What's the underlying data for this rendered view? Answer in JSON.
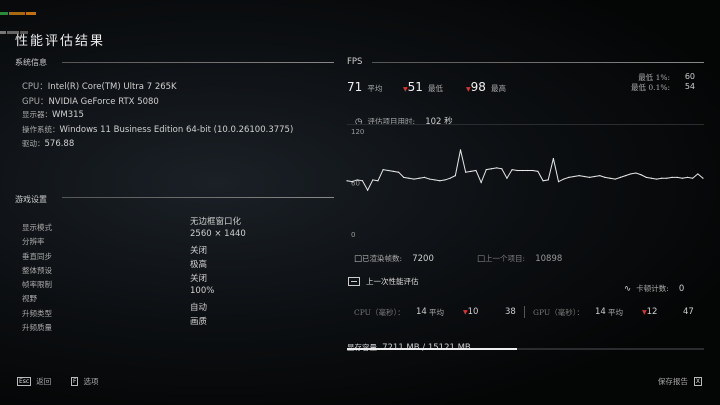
{
  "title": "性能评估结果",
  "system": {
    "heading": "系统信息",
    "rows": [
      {
        "label": "CPU：",
        "value": "Intel(R) Core(TM) Ultra 7 265K"
      },
      {
        "label": "GPU：",
        "value": "NVIDIA GeForce RTX 5080"
      },
      {
        "label": "显示器：",
        "value": "WM315"
      },
      {
        "label": "操作系统：",
        "value": "Windows 11 Business Edition 64-bit (10.0.26100.3775)"
      },
      {
        "label": "驱动：",
        "value": "576.88"
      }
    ]
  },
  "settings": {
    "heading": "游戏设置",
    "rows": [
      {
        "label": "显示模式",
        "value": "无边框窗口化"
      },
      {
        "label": "分辨率",
        "value": "2560 × 1440"
      },
      {
        "label": "垂直同步",
        "value": "关闭"
      },
      {
        "label": "整体预设",
        "value": "极高"
      },
      {
        "label": "帧率限制",
        "value": "关闭"
      },
      {
        "label": "视野",
        "value": "100%"
      },
      {
        "label": "升频类型",
        "value": "自动"
      },
      {
        "label": "升频质量",
        "value": "画质"
      }
    ]
  },
  "fps": {
    "heading": "FPS",
    "avg": "71",
    "avg_label": "平均",
    "min": "51",
    "min_label": "最低",
    "max": "98",
    "max_label": "最高",
    "low1_label": "最低 1%:",
    "low1": "60",
    "low01_label": "最低 0.1%:",
    "low01": "54",
    "duration_label": "评估项目用时:",
    "duration": "102 秒",
    "frames_label": "已渲染帧数:",
    "frames": "7200",
    "prev_label": "上一个项目:",
    "prev": "10898"
  },
  "chart_data": {
    "type": "line",
    "yticks": [
      "120",
      "60",
      "0"
    ],
    "ylim": [
      0,
      120
    ],
    "values": [
      62,
      61,
      63,
      62,
      51,
      63,
      62,
      75,
      74,
      73,
      72,
      66,
      65,
      64,
      65,
      66,
      64,
      63,
      62,
      63,
      65,
      68,
      98,
      72,
      73,
      74,
      60,
      75,
      76,
      77,
      76,
      65,
      75,
      74,
      74,
      74,
      74,
      73,
      62,
      63,
      88,
      61,
      64,
      66,
      67,
      68,
      67,
      66,
      67,
      68,
      66,
      65,
      64,
      66,
      68,
      70,
      71,
      69,
      66,
      65,
      64,
      65,
      65,
      66,
      66,
      65,
      66,
      65,
      70,
      65
    ],
    "line_color": "#e8e8e8"
  },
  "last": {
    "heading": "上一次性能评估",
    "stutter_label": "卡顿计数:",
    "stutter": "0",
    "cpu_label": "CPU（毫秒）：",
    "cpu_avg": "14",
    "avg_label": "平均",
    "cpu_min": "10",
    "cpu_max": "38",
    "gpu_label": "GPU（毫秒）：",
    "gpu_avg": "14",
    "gpu_min": "12",
    "gpu_max": "47"
  },
  "vram": {
    "label": "显存容量",
    "value": "7211 MB / 15121 MB",
    "fraction": 0.477
  },
  "footer": {
    "back_key": "Esc",
    "back": "返回",
    "options_key": "F",
    "options": "选项",
    "save": "保存报告",
    "save_key": "X"
  },
  "colors": {
    "accent_red": "#d33333"
  }
}
